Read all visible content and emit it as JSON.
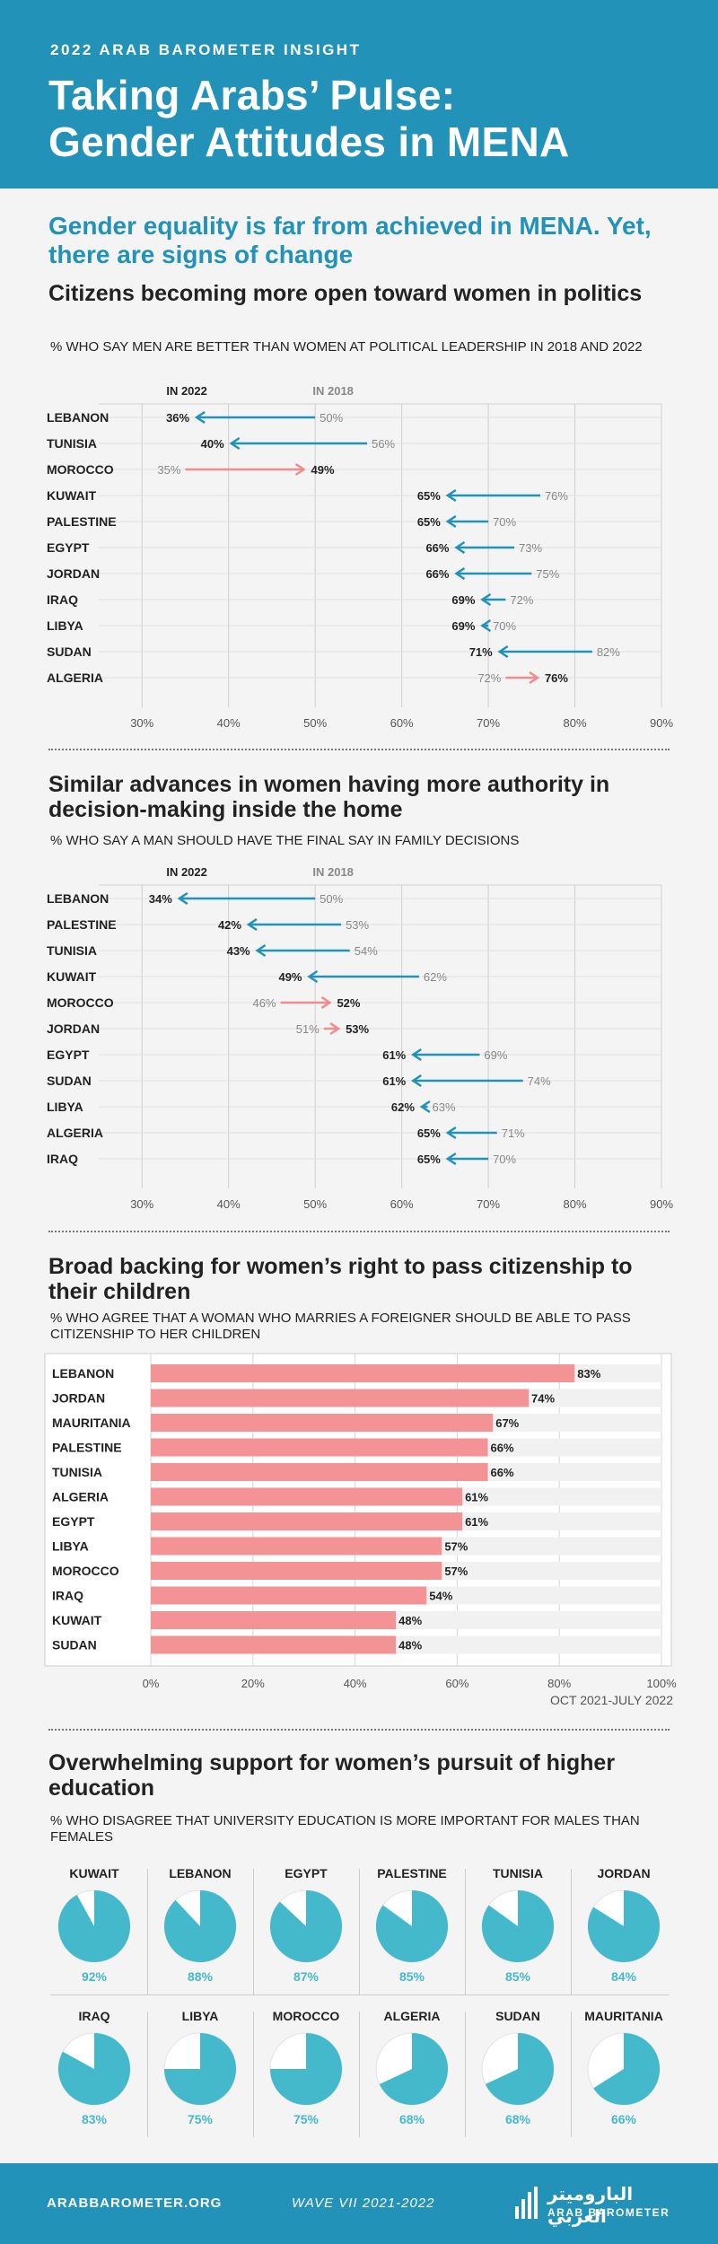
{
  "header": {
    "kicker": "2022 ARAB BAROMETER INSIGHT",
    "title_line1": "Taking Arabs’ Pulse:",
    "title_line2": "Gender Attitudes in MENA"
  },
  "lead": "Gender equality is far from achieved in MENA. Yet, there are signs of change",
  "colors": {
    "brand": "#2292b8",
    "decrease": "#2292b8",
    "increase": "#f08c8c",
    "bar": "#f39396",
    "pie": "#44b9cc"
  },
  "sections": {
    "politics": {
      "title": "Citizens becoming more open toward women in politics",
      "subtitle": "% WHO SAY MEN ARE BETTER THAN WOMEN AT POLITICAL LEADERSHIP IN 2018 AND 2022"
    },
    "home": {
      "title": "Similar advances in women having more authority in decision-making inside the home",
      "subtitle": "% WHO SAY A MAN SHOULD HAVE THE FINAL SAY IN FAMILY DECISIONS"
    },
    "citizenship": {
      "title": "Broad backing for women’s right to pass citizenship to their children",
      "subtitle": "% WHO AGREE THAT A WOMAN WHO MARRIES A FOREIGNER SHOULD BE ABLE TO PASS CITIZENSHIP TO HER CHILDREN",
      "note": "OCT 2021-JULY 2022"
    },
    "education": {
      "title": "Overwhelming support for women’s pursuit of higher education",
      "subtitle": "% WHO DISAGREE THAT UNIVERSITY EDUCATION IS MORE IMPORTANT FOR MALES THAN FEMALES"
    }
  },
  "chart_data": [
    {
      "type": "dumbbell",
      "legend": [
        "IN 2022",
        "IN 2018"
      ],
      "xlim": [
        25,
        90
      ],
      "ticks": [
        30,
        40,
        50,
        60,
        70,
        80,
        90
      ],
      "tick_labels": [
        "30%",
        "40%",
        "50%",
        "60%",
        "70%",
        "80%",
        "90%"
      ],
      "rows": [
        {
          "country": "LEBANON",
          "y2018": 50,
          "y2022": 36
        },
        {
          "country": "TUNISIA",
          "y2018": 56,
          "y2022": 40
        },
        {
          "country": "MOROCCO",
          "y2018": 35,
          "y2022": 49
        },
        {
          "country": "KUWAIT",
          "y2018": 76,
          "y2022": 65
        },
        {
          "country": "PALESTINE",
          "y2018": 70,
          "y2022": 65
        },
        {
          "country": "EGYPT",
          "y2018": 73,
          "y2022": 66
        },
        {
          "country": "JORDAN",
          "y2018": 75,
          "y2022": 66
        },
        {
          "country": "IRAQ",
          "y2018": 72,
          "y2022": 69
        },
        {
          "country": "LIBYA",
          "y2018": 70,
          "y2022": 69
        },
        {
          "country": "SUDAN",
          "y2018": 82,
          "y2022": 71
        },
        {
          "country": "ALGERIA",
          "y2018": 72,
          "y2022": 76
        }
      ]
    },
    {
      "type": "dumbbell",
      "legend": [
        "IN 2022",
        "IN 2018"
      ],
      "xlim": [
        25,
        90
      ],
      "ticks": [
        30,
        40,
        50,
        60,
        70,
        80,
        90
      ],
      "tick_labels": [
        "30%",
        "40%",
        "50%",
        "60%",
        "70%",
        "80%",
        "90%"
      ],
      "rows": [
        {
          "country": "LEBANON",
          "y2018": 50,
          "y2022": 34
        },
        {
          "country": "PALESTINE",
          "y2018": 53,
          "y2022": 42
        },
        {
          "country": "TUNISIA",
          "y2018": 54,
          "y2022": 43
        },
        {
          "country": "KUWAIT",
          "y2018": 62,
          "y2022": 49
        },
        {
          "country": "MOROCCO",
          "y2018": 46,
          "y2022": 52
        },
        {
          "country": "JORDAN",
          "y2018": 51,
          "y2022": 53
        },
        {
          "country": "EGYPT",
          "y2018": 69,
          "y2022": 61
        },
        {
          "country": "SUDAN",
          "y2018": 74,
          "y2022": 61
        },
        {
          "country": "LIBYA",
          "y2018": 63,
          "y2022": 62
        },
        {
          "country": "ALGERIA",
          "y2018": 71,
          "y2022": 65
        },
        {
          "country": "IRAQ",
          "y2018": 70,
          "y2022": 65
        }
      ]
    },
    {
      "type": "bar",
      "orientation": "horizontal",
      "categories": [
        "LEBANON",
        "JORDAN",
        "MAURITANIA",
        "PALESTINE",
        "TUNISIA",
        "ALGERIA",
        "EGYPT",
        "LIBYA",
        "MOROCCO",
        "IRAQ",
        "KUWAIT",
        "SUDAN"
      ],
      "values": [
        83,
        74,
        67,
        66,
        66,
        61,
        61,
        57,
        57,
        54,
        48,
        48
      ],
      "xlim": [
        0,
        100
      ],
      "ticks": [
        0,
        20,
        40,
        60,
        80,
        100
      ],
      "tick_labels": [
        "0%",
        "20%",
        "40%",
        "60%",
        "80%",
        "100%"
      ]
    },
    {
      "type": "pie",
      "categories": [
        "KUWAIT",
        "LEBANON",
        "EGYPT",
        "PALESTINE",
        "TUNISIA",
        "JORDAN",
        "IRAQ",
        "LIBYA",
        "MOROCCO",
        "ALGERIA",
        "SUDAN",
        "MAURITANIA"
      ],
      "values": [
        92,
        88,
        87,
        85,
        85,
        84,
        83,
        75,
        75,
        68,
        68,
        66
      ]
    }
  ],
  "footer": {
    "url": "ARABBAROMETER.ORG",
    "wave": "WAVE VII 2021-2022",
    "logo_arabic": "الباروميتر العربي",
    "logo_english": "ARAB BAROMETER"
  }
}
